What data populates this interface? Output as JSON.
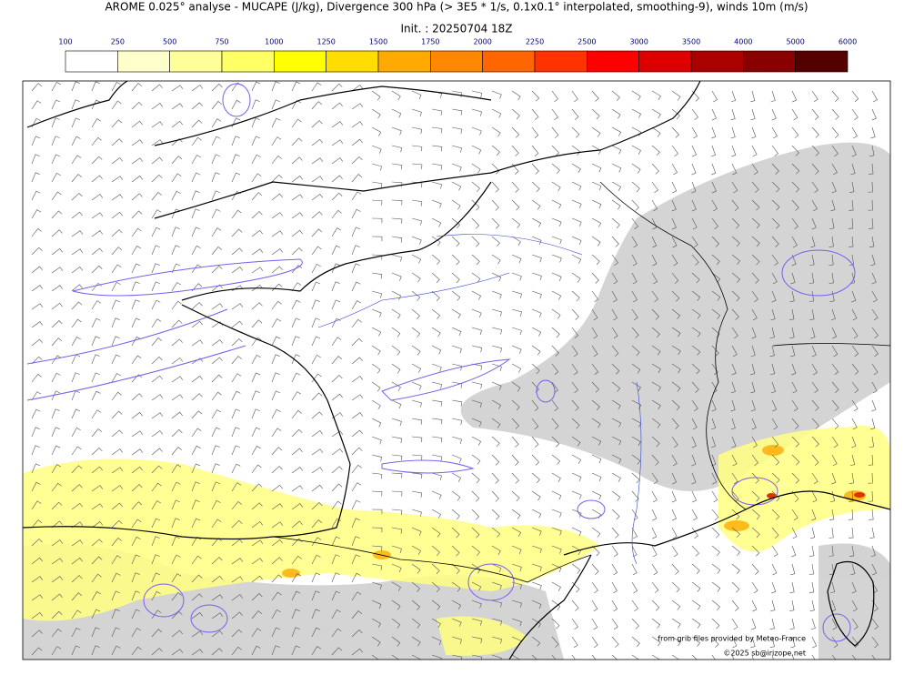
{
  "header": {
    "title": "AROME 0.025° analyse - MUCAPE (J/kg), Divergence 300 hPa (> 3E5 * 1/s, 0.1x0.1° interpolated, smoothing-9), winds 10m (m/s)",
    "subtitle": "Init. : 20250704 18Z"
  },
  "colorbar": {
    "labels": [
      "100",
      "250",
      "500",
      "750",
      "1000",
      "1250",
      "1500",
      "1750",
      "2000",
      "2250",
      "2500",
      "3000",
      "3500",
      "4000",
      "5000",
      "6000"
    ],
    "colors": [
      "#ffffff",
      "#ffffcc",
      "#ffff99",
      "#ffff66",
      "#ffff00",
      "#ffdd00",
      "#ffaa00",
      "#ff8800",
      "#ff6600",
      "#ff3300",
      "#ff0000",
      "#dd0000",
      "#aa0000",
      "#880000",
      "#550000"
    ]
  },
  "credits": [
    "from grib files provided by Meteo-France",
    "©2025 sb@irizope.net"
  ]
}
